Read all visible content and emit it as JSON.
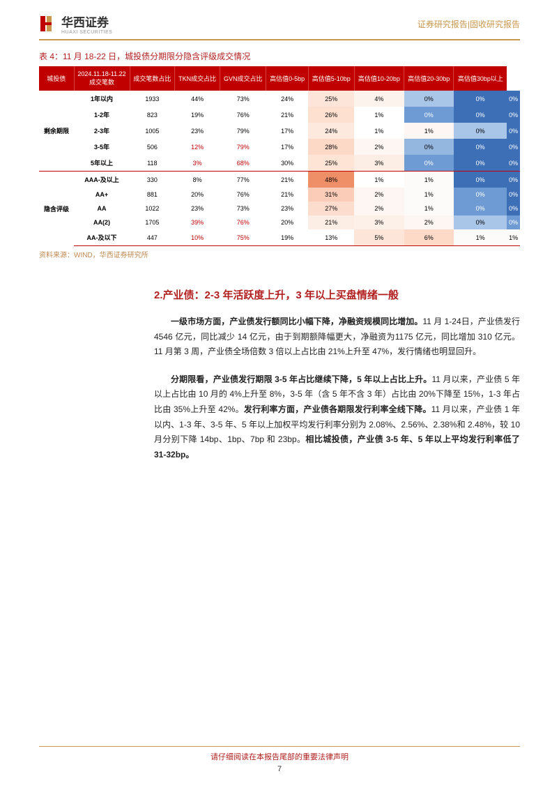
{
  "header": {
    "logo_cn": "华西证券",
    "logo_en": "HUAXI SECURITIES",
    "right": "证券研究报告|固收研究报告"
  },
  "table": {
    "title": "表 4：11 月 18-22 日，城投债分期限分隐含评级成交情况",
    "headers": [
      "城投债",
      "2024.11.18-11.22\n成交笔数",
      "成交笔数占比",
      "TKN成交占比",
      "GVN成交占比",
      "高估值0-5bp",
      "高估值5-10bp",
      "高估值10-20bp",
      "高估值20-30bp",
      "高估值30bp以上"
    ],
    "group1_label": "剩余期限",
    "group2_label": "隐含评级",
    "rows1": [
      {
        "label": "1年以内",
        "cells": [
          "1933",
          "44%",
          "73%",
          "24%",
          "25%",
          "4%",
          "0%",
          "0%",
          "0%"
        ],
        "red": [],
        "colors": [
          "",
          "",
          "",
          "",
          "#fde6d9",
          "#fdf3ed",
          "#a9c5e8",
          "#3d6fb6",
          "#3d6fb6"
        ]
      },
      {
        "label": "1-2年",
        "cells": [
          "823",
          "19%",
          "76%",
          "21%",
          "26%",
          "1%",
          "0%",
          "0%",
          "0%"
        ],
        "red": [],
        "colors": [
          "",
          "",
          "",
          "",
          "#fde0d0",
          "#ffffff",
          "#6e9bd4",
          "#3d6fb6",
          "#3d6fb6"
        ]
      },
      {
        "label": "2-3年",
        "cells": [
          "1005",
          "23%",
          "79%",
          "17%",
          "24%",
          "1%",
          "1%",
          "0%",
          "0%"
        ],
        "red": [],
        "colors": [
          "",
          "",
          "",
          "",
          "#fde9de",
          "#ffffff",
          "#fdf6f2",
          "#a9c5e8",
          "#3d6fb6"
        ]
      },
      {
        "label": "3-5年",
        "cells": [
          "506",
          "12%",
          "79%",
          "17%",
          "28%",
          "2%",
          "0%",
          "0%",
          "0%"
        ],
        "red": [
          1,
          2
        ],
        "colors": [
          "",
          "",
          "",
          "",
          "#fcd8c7",
          "#fdf6f2",
          "#94b7e0",
          "#3d6fb6",
          "#3d6fb6"
        ]
      },
      {
        "label": "5年以上",
        "cells": [
          "118",
          "3%",
          "68%",
          "30%",
          "25%",
          "3%",
          "0%",
          "0%",
          "0%"
        ],
        "red": [
          1,
          2
        ],
        "colors": [
          "",
          "",
          "",
          "",
          "#fde4d5",
          "#fdeee5",
          "#6e9bd4",
          "#3d6fb6",
          "#3d6fb6"
        ]
      }
    ],
    "rows2": [
      {
        "label": "AAA-及以上",
        "cells": [
          "330",
          "8%",
          "77%",
          "21%",
          "48%",
          "1%",
          "1%",
          "0%",
          "0%"
        ],
        "red": [],
        "colors": [
          "",
          "",
          "",
          "",
          "#ef8f68",
          "#ffffff",
          "#fdfbf9",
          "#3d6fb6",
          "#3d6fb6"
        ]
      },
      {
        "label": "AA+",
        "cells": [
          "881",
          "20%",
          "76%",
          "21%",
          "31%",
          "2%",
          "1%",
          "0%",
          "0%"
        ],
        "red": [],
        "colors": [
          "",
          "",
          "",
          "",
          "#fbcdb9",
          "#fdf6f2",
          "#fdfbf9",
          "#6e9bd4",
          "#3d6fb6"
        ]
      },
      {
        "label": "AA",
        "cells": [
          "1022",
          "23%",
          "73%",
          "23%",
          "27%",
          "2%",
          "1%",
          "0%",
          "0%"
        ],
        "red": [],
        "colors": [
          "",
          "",
          "",
          "",
          "#fcdccc",
          "#fdf6f2",
          "#fdfbf9",
          "#6e9bd4",
          "#3d6fb6"
        ]
      },
      {
        "label": "AA(2)",
        "cells": [
          "1705",
          "39%",
          "76%",
          "20%",
          "21%",
          "3%",
          "2%",
          "0%",
          "0%"
        ],
        "red": [
          1,
          2
        ],
        "colors": [
          "",
          "",
          "",
          "",
          "#fdeee5",
          "#fdf0e8",
          "#fdf6f2",
          "#a9c5e8",
          "#6e9bd4"
        ]
      },
      {
        "label": "AA-及以下",
        "cells": [
          "447",
          "10%",
          "75%",
          "19%",
          "13%",
          "5%",
          "6%",
          "1%",
          "1%"
        ],
        "red": [
          1,
          2
        ],
        "colors": [
          "",
          "",
          "",
          "",
          "#ffffff",
          "#fde6d9",
          "#fddac8",
          "#fdfbf9",
          "#fdfbf9"
        ]
      }
    ],
    "source": "资料来源：WIND，华西证券研究所"
  },
  "section": {
    "heading": "2.产业债：2-3 年活跃度上升，3 年以上买盘情绪一般",
    "p1_bold": "一级市场方面，产业债发行额同比小幅下降，净融资规模同比增加。",
    "p1_rest": "11 月 1-24日，产业债发行 4546 亿元，同比减少 14 亿元，由于到期额降幅更大，净融资为1175 亿元，同比增加 310 亿元。11 月第 3 周，产业债全场倍数 3 倍以上占比由 21%上升至 47%，发行情绪也明显回升。",
    "p2_bold": "分期限看，产业债发行期限 3-5 年占比继续下降，5 年以上占比上升。",
    "p2_mid": "11 月以来，产业债 5 年以上占比由 10 月的 4%上升至 8%，3-5 年（含 5 年不含 3 年）占比由 20%下降至 15%，1-3 年占比由 35%上升至 42%。",
    "p2_bold2": "发行利率方面，产业债各期限发行利率全线下降。",
    "p2_rest": "11 月以来，产业债 1 年以内、1-3 年、3-5 年、5 年以上加权平均发行利率分别为 2.08%、2.56%、2.38%和 2.48%，较 10 月分别下降 14bp、1bp、7bp 和 23bp。",
    "p2_bold3": "相比城投债，产业债 3-5 年、5 年以上平均发行利率低了 31-32bp。"
  },
  "footer": {
    "text": "请仔细阅读在本报告尾部的重要法律声明",
    "page": "7"
  }
}
